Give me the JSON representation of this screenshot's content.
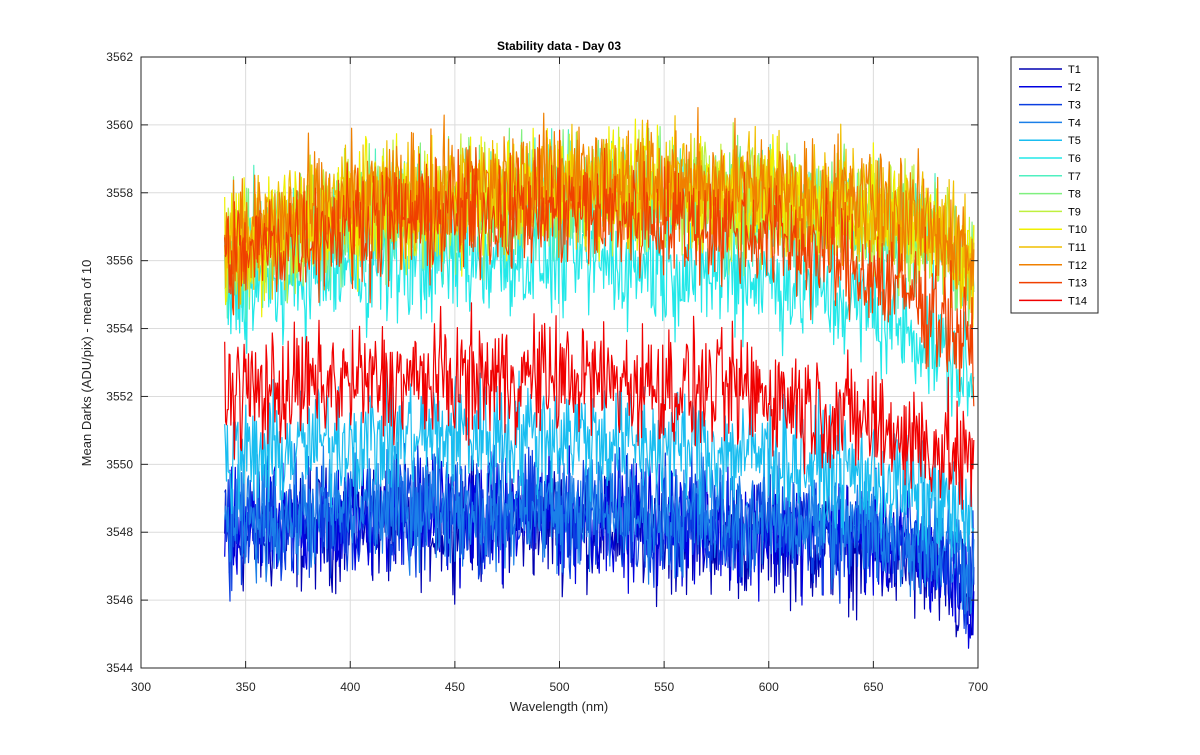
{
  "chart_data": {
    "type": "line",
    "title": "Stability data - Day 03",
    "xlabel": "Wavelength (nm)",
    "ylabel": "Mean Darks (ADU/pix) - mean of 10",
    "xlim": [
      300,
      700
    ],
    "ylim": [
      3544,
      3562
    ],
    "xticks": [
      300,
      350,
      400,
      450,
      500,
      550,
      600,
      650,
      700
    ],
    "yticks": [
      3544,
      3546,
      3548,
      3550,
      3552,
      3554,
      3556,
      3558,
      3560,
      3562
    ],
    "xtick_labels": [
      "300",
      "350",
      "400",
      "450",
      "500",
      "550",
      "600",
      "650",
      "700"
    ],
    "ytick_labels": [
      "3544",
      "3546",
      "3548",
      "3550",
      "3552",
      "3554",
      "3556",
      "3558",
      "3560",
      "3562"
    ],
    "grid": true,
    "legend_position": "outside-top-right",
    "noise_amplitude": 1.7,
    "series": [
      {
        "name": "T1",
        "color": "#0000b0",
        "x": [
          340,
          360,
          400,
          450,
          500,
          550,
          600,
          650,
          680,
          698
        ],
        "y": [
          3547.8,
          3547.9,
          3548.2,
          3548.3,
          3548.3,
          3548.0,
          3547.8,
          3547.5,
          3546.8,
          3545.6
        ]
      },
      {
        "name": "T2",
        "color": "#0000e0",
        "x": [
          340,
          360,
          400,
          450,
          500,
          550,
          600,
          650,
          680,
          698
        ],
        "y": [
          3548.0,
          3548.1,
          3548.4,
          3548.5,
          3548.5,
          3548.3,
          3548.1,
          3547.8,
          3547.1,
          3546.0
        ]
      },
      {
        "name": "T3",
        "color": "#0b3fe0",
        "x": [
          340,
          360,
          400,
          450,
          500,
          550,
          600,
          650,
          680,
          698
        ],
        "y": [
          3548.1,
          3548.2,
          3548.5,
          3548.6,
          3548.6,
          3548.4,
          3548.2,
          3547.9,
          3547.3,
          3546.4
        ]
      },
      {
        "name": "T4",
        "color": "#1b7fe8",
        "x": [
          340,
          360,
          400,
          450,
          500,
          550,
          600,
          650,
          680,
          698
        ],
        "y": [
          3548.3,
          3548.4,
          3548.7,
          3548.8,
          3548.7,
          3548.5,
          3548.4,
          3548.1,
          3547.6,
          3547.2
        ]
      },
      {
        "name": "T5",
        "color": "#19bdf0",
        "x": [
          340,
          360,
          400,
          450,
          500,
          550,
          600,
          650,
          680,
          698
        ],
        "y": [
          3550.1,
          3550.3,
          3550.8,
          3550.9,
          3550.9,
          3550.6,
          3550.3,
          3549.6,
          3549.0,
          3548.2
        ]
      },
      {
        "name": "T6",
        "color": "#22e8e8",
        "x": [
          340,
          360,
          400,
          450,
          500,
          550,
          600,
          650,
          680,
          698
        ],
        "y": [
          3555.0,
          3555.3,
          3555.8,
          3556.0,
          3556.1,
          3555.8,
          3555.5,
          3554.5,
          3553.5,
          3552.2
        ]
      },
      {
        "name": "T7",
        "color": "#4ff0c0",
        "x": [
          340,
          360,
          400,
          450,
          500,
          550,
          600,
          650,
          680,
          698
        ],
        "y": [
          3556.0,
          3556.5,
          3557.2,
          3557.5,
          3557.9,
          3557.8,
          3557.6,
          3557.2,
          3556.5,
          3555.4
        ]
      },
      {
        "name": "T8",
        "color": "#7ff07f",
        "x": [
          340,
          360,
          400,
          450,
          500,
          550,
          600,
          650,
          680,
          698
        ],
        "y": [
          3556.1,
          3556.6,
          3557.3,
          3557.6,
          3558.0,
          3557.9,
          3557.7,
          3557.3,
          3556.6,
          3555.5
        ]
      },
      {
        "name": "T9",
        "color": "#bff03f",
        "x": [
          340,
          360,
          400,
          450,
          500,
          550,
          600,
          650,
          680,
          698
        ],
        "y": [
          3556.2,
          3556.7,
          3557.4,
          3557.7,
          3558.1,
          3558.0,
          3557.8,
          3557.4,
          3556.7,
          3555.6
        ]
      },
      {
        "name": "T10",
        "color": "#f0f000",
        "x": [
          340,
          360,
          400,
          450,
          500,
          550,
          600,
          650,
          680,
          698
        ],
        "y": [
          3556.3,
          3556.8,
          3557.5,
          3557.8,
          3558.2,
          3558.1,
          3557.9,
          3557.5,
          3556.8,
          3555.7
        ]
      },
      {
        "name": "T11",
        "color": "#f0bf00",
        "x": [
          340,
          360,
          400,
          450,
          500,
          550,
          600,
          650,
          680,
          698
        ],
        "y": [
          3556.4,
          3556.9,
          3557.6,
          3557.9,
          3558.3,
          3558.2,
          3558.0,
          3557.6,
          3556.9,
          3555.8
        ]
      },
      {
        "name": "T12",
        "color": "#f08000",
        "x": [
          340,
          360,
          400,
          450,
          500,
          550,
          600,
          650,
          680,
          698
        ],
        "y": [
          3556.5,
          3557.0,
          3557.7,
          3558.0,
          3558.4,
          3558.3,
          3558.1,
          3557.7,
          3557.0,
          3555.9
        ]
      },
      {
        "name": "T13",
        "color": "#f04000",
        "x": [
          340,
          360,
          400,
          450,
          500,
          550,
          600,
          650,
          680,
          698
        ],
        "y": [
          3556.0,
          3556.4,
          3557.1,
          3557.3,
          3557.5,
          3557.2,
          3556.8,
          3555.6,
          3554.6,
          3553.3
        ]
      },
      {
        "name": "T14",
        "color": "#f00000",
        "x": [
          340,
          360,
          400,
          450,
          500,
          550,
          600,
          650,
          680,
          698
        ],
        "y": [
          3552.1,
          3552.2,
          3552.4,
          3552.5,
          3552.6,
          3552.3,
          3552.1,
          3551.2,
          3550.5,
          3549.9
        ]
      }
    ]
  }
}
